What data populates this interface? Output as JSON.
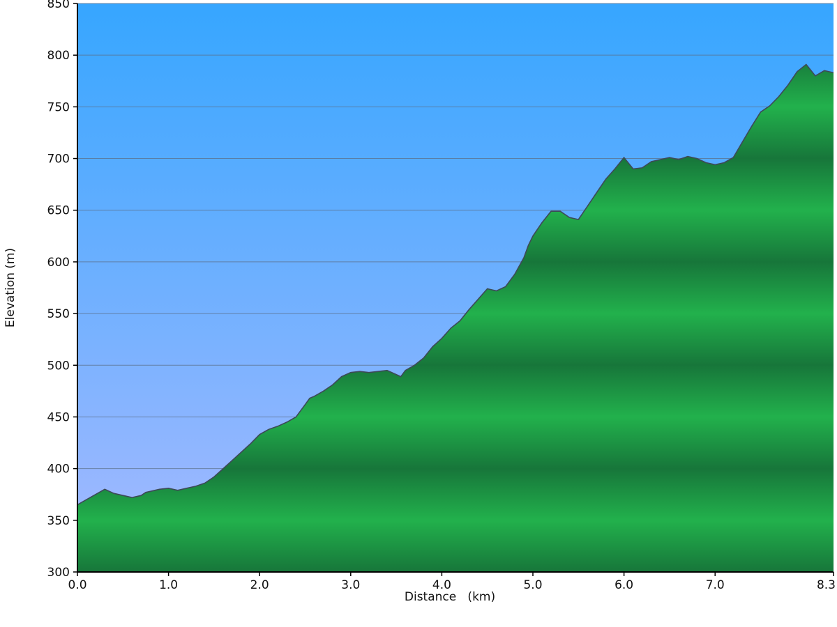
{
  "chart_data": {
    "type": "area",
    "title": "",
    "xlabel": "Distance   (km)",
    "ylabel": "Elevation (m)",
    "xlim": [
      0,
      8.3
    ],
    "ylim": [
      300,
      850
    ],
    "x_ticks": [
      0.0,
      1.0,
      2.0,
      3.0,
      4.0,
      5.0,
      6.0,
      7.0,
      8.3
    ],
    "x_tick_labels": [
      "0.0",
      "1.0",
      "2.0",
      "3.0",
      "4.0",
      "5.0",
      "6.0",
      "7.0",
      "8.3"
    ],
    "y_ticks": [
      300,
      350,
      400,
      450,
      500,
      550,
      600,
      650,
      700,
      750,
      800,
      850
    ],
    "y_tick_labels": [
      "300",
      "350",
      "400",
      "450",
      "500",
      "550",
      "600",
      "650",
      "700",
      "750",
      "800",
      "850"
    ],
    "grid": true,
    "colors": {
      "sky_top": "#36a6ff",
      "sky_bottom": "#a8baff",
      "terrain_light": "#22b14c",
      "terrain_dark": "#17763a",
      "profile_line": "#3d4a58",
      "grid_line": "#5b6f8a"
    },
    "series": [
      {
        "x": [
          0.0,
          0.1,
          0.2,
          0.3,
          0.4,
          0.5,
          0.6,
          0.7,
          0.75,
          0.8,
          0.9,
          1.0,
          1.1,
          1.2,
          1.3,
          1.4,
          1.5,
          1.6,
          1.7,
          1.8,
          1.9,
          2.0,
          2.1,
          2.2,
          2.3,
          2.4,
          2.5,
          2.55,
          2.6,
          2.7,
          2.8,
          2.9,
          3.0,
          3.1,
          3.2,
          3.3,
          3.4,
          3.5,
          3.55,
          3.6,
          3.7,
          3.8,
          3.9,
          4.0,
          4.1,
          4.2,
          4.3,
          4.4,
          4.5,
          4.6,
          4.7,
          4.8,
          4.9,
          4.95,
          5.0,
          5.1,
          5.2,
          5.3,
          5.4,
          5.5,
          5.6,
          5.7,
          5.8,
          5.9,
          6.0,
          6.1,
          6.2,
          6.3,
          6.4,
          6.5,
          6.6,
          6.7,
          6.8,
          6.9,
          7.0,
          7.1,
          7.2,
          7.3,
          7.4,
          7.5,
          7.6,
          7.7,
          7.8,
          7.9,
          8.0,
          8.1,
          8.2,
          8.3
        ],
        "y": [
          365,
          370,
          375,
          380,
          376,
          374,
          372,
          374,
          377,
          378,
          380,
          381,
          379,
          381,
          383,
          386,
          392,
          400,
          408,
          416,
          424,
          433,
          438,
          441,
          445,
          450,
          462,
          468,
          470,
          475,
          481,
          489,
          493,
          494,
          493,
          494,
          495,
          491,
          489,
          495,
          500,
          507,
          518,
          526,
          536,
          543,
          554,
          564,
          574,
          572,
          576,
          588,
          604,
          616,
          625,
          638,
          649,
          649,
          643,
          641,
          654,
          667,
          680,
          690,
          701,
          690,
          691,
          697,
          699,
          701,
          699,
          702,
          700,
          696,
          694,
          696,
          701,
          716,
          731,
          745,
          751,
          760,
          771,
          784,
          791,
          780,
          785,
          783
        ]
      }
    ]
  }
}
